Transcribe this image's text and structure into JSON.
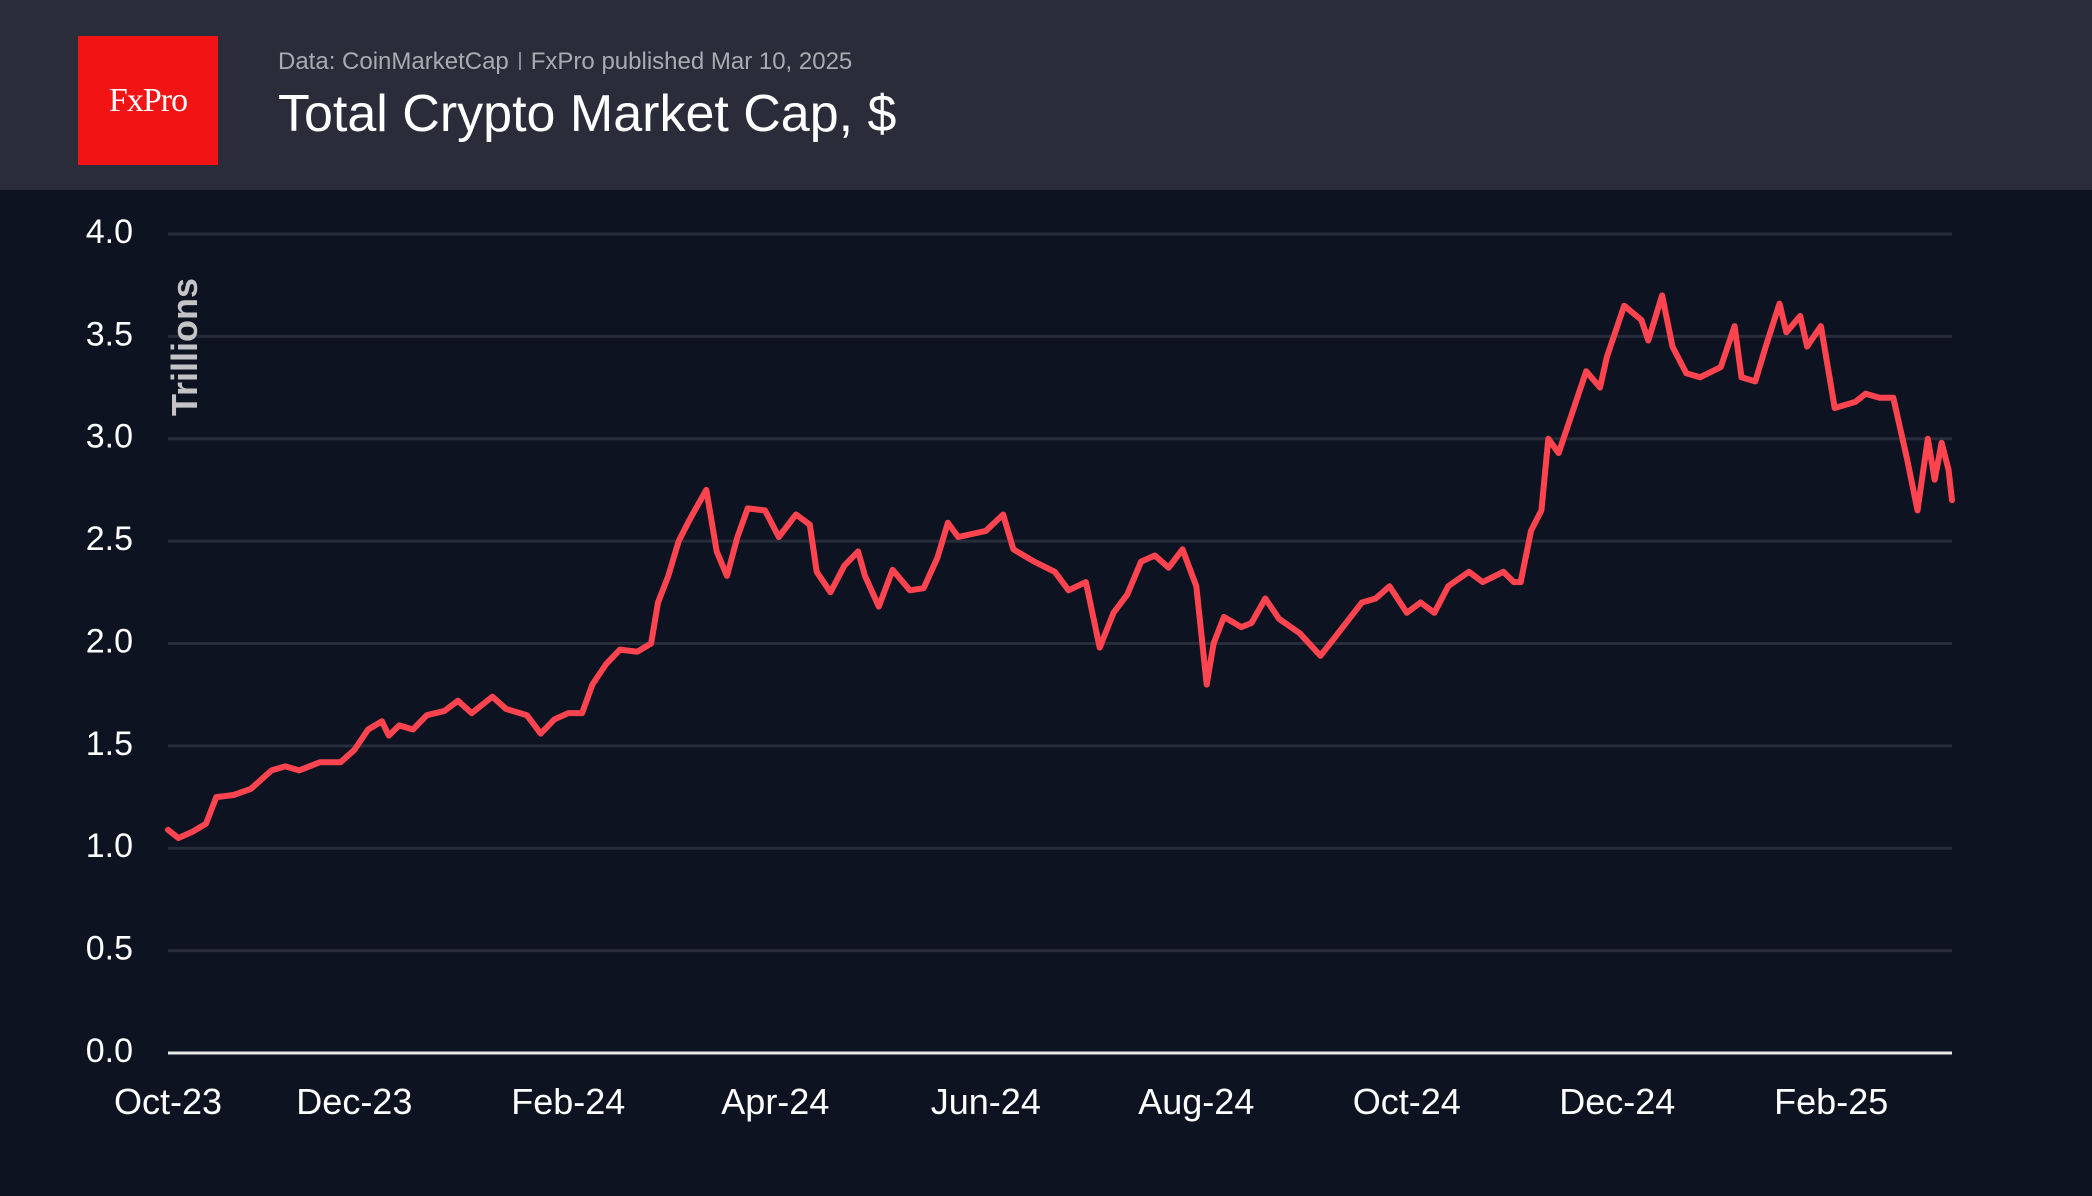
{
  "header": {
    "logo_text": "FxPro",
    "source": "Data: CoinMarketCap",
    "published": "FxPro published Mar 10, 2025",
    "title": "Total Crypto Market Cap, $"
  },
  "colors": {
    "line": "#ff4450",
    "background": "#0d1321",
    "header": "#2a2c39",
    "logo": "#f21414",
    "grid": "#272c3a"
  },
  "chart_data": {
    "type": "line",
    "title": "Total Crypto Market Cap, $",
    "ylabel": "Trillions",
    "xlabel": "",
    "ylim": [
      0,
      4
    ],
    "xlim": [
      "2023-10-08",
      "2025-03-08"
    ],
    "grid": true,
    "yticks": [
      "0.0",
      "0.5",
      "1.0",
      "1.5",
      "2.0",
      "2.5",
      "3.0",
      "3.5",
      "4.0"
    ],
    "xticks": [
      {
        "label": "Oct-23",
        "date": "2023-10-01"
      },
      {
        "label": "Dec-23",
        "date": "2023-12-01"
      },
      {
        "label": "Feb-24",
        "date": "2024-02-01"
      },
      {
        "label": "Apr-24",
        "date": "2024-04-01"
      },
      {
        "label": "Jun-24",
        "date": "2024-06-01"
      },
      {
        "label": "Aug-24",
        "date": "2024-08-01"
      },
      {
        "label": "Oct-24",
        "date": "2024-10-01"
      },
      {
        "label": "Dec-24",
        "date": "2024-12-01"
      },
      {
        "label": "Feb-25",
        "date": "2025-02-01"
      }
    ],
    "series": [
      {
        "x": [
          "2023-10-08",
          "2023-10-11",
          "2023-10-15",
          "2023-10-19",
          "2023-10-22",
          "2023-10-27",
          "2023-11-01",
          "2023-11-07",
          "2023-11-11",
          "2023-11-15",
          "2023-11-21",
          "2023-11-27",
          "2023-12-01",
          "2023-12-05",
          "2023-12-09",
          "2023-12-11",
          "2023-12-14",
          "2023-12-18",
          "2023-12-22",
          "2023-12-27",
          "2023-12-31",
          "2024-01-04",
          "2024-01-10",
          "2024-01-14",
          "2024-01-20",
          "2024-01-24",
          "2024-01-28",
          "2024-02-01",
          "2024-02-05",
          "2024-02-08",
          "2024-02-12",
          "2024-02-16",
          "2024-02-21",
          "2024-02-25",
          "2024-02-27",
          "2024-03-01",
          "2024-03-04",
          "2024-03-07",
          "2024-03-12",
          "2024-03-15",
          "2024-03-18",
          "2024-03-21",
          "2024-03-24",
          "2024-03-29",
          "2024-04-02",
          "2024-04-07",
          "2024-04-11",
          "2024-04-13",
          "2024-04-17",
          "2024-04-21",
          "2024-04-25",
          "2024-04-27",
          "2024-05-01",
          "2024-05-05",
          "2024-05-10",
          "2024-05-14",
          "2024-05-18",
          "2024-05-21",
          "2024-05-24",
          "2024-06-01",
          "2024-06-06",
          "2024-06-09",
          "2024-06-15",
          "2024-06-21",
          "2024-06-25",
          "2024-06-30",
          "2024-07-04",
          "2024-07-08",
          "2024-07-12",
          "2024-07-16",
          "2024-07-20",
          "2024-07-24",
          "2024-07-28",
          "2024-08-01",
          "2024-08-04",
          "2024-08-06",
          "2024-08-09",
          "2024-08-14",
          "2024-08-17",
          "2024-08-21",
          "2024-08-25",
          "2024-08-31",
          "2024-09-06",
          "2024-09-12",
          "2024-09-18",
          "2024-09-22",
          "2024-09-26",
          "2024-10-01",
          "2024-10-05",
          "2024-10-09",
          "2024-10-13",
          "2024-10-19",
          "2024-10-23",
          "2024-10-29",
          "2024-11-01",
          "2024-11-03",
          "2024-11-06",
          "2024-11-09",
          "2024-11-11",
          "2024-11-14",
          "2024-11-17",
          "2024-11-22",
          "2024-11-26",
          "2024-11-28",
          "2024-12-03",
          "2024-12-08",
          "2024-12-10",
          "2024-12-14",
          "2024-12-17",
          "2024-12-21",
          "2024-12-25",
          "2024-12-31",
          "2025-01-04",
          "2025-01-06",
          "2025-01-10",
          "2025-01-13",
          "2025-01-17",
          "2025-01-19",
          "2025-01-23",
          "2025-01-25",
          "2025-01-29",
          "2025-02-02",
          "2025-02-08",
          "2025-02-11",
          "2025-02-15",
          "2025-02-19",
          "2025-02-23",
          "2025-02-26",
          "2025-03-01",
          "2025-03-03",
          "2025-03-05",
          "2025-03-07",
          "2025-03-08"
        ],
        "values": [
          1.09,
          1.05,
          1.08,
          1.12,
          1.25,
          1.26,
          1.29,
          1.38,
          1.4,
          1.38,
          1.42,
          1.42,
          1.48,
          1.58,
          1.62,
          1.55,
          1.6,
          1.58,
          1.65,
          1.67,
          1.72,
          1.66,
          1.74,
          1.68,
          1.65,
          1.56,
          1.63,
          1.66,
          1.66,
          1.8,
          1.9,
          1.97,
          1.96,
          2.0,
          2.2,
          2.33,
          2.5,
          2.6,
          2.75,
          2.45,
          2.33,
          2.52,
          2.66,
          2.65,
          2.52,
          2.63,
          2.58,
          2.35,
          2.25,
          2.38,
          2.45,
          2.33,
          2.18,
          2.36,
          2.26,
          2.27,
          2.42,
          2.59,
          2.52,
          2.55,
          2.63,
          2.46,
          2.4,
          2.35,
          2.26,
          2.3,
          1.98,
          2.15,
          2.24,
          2.4,
          2.43,
          2.37,
          2.46,
          2.28,
          1.8,
          2.0,
          2.13,
          2.08,
          2.1,
          2.22,
          2.12,
          2.05,
          1.94,
          2.07,
          2.2,
          2.22,
          2.28,
          2.15,
          2.2,
          2.15,
          2.28,
          2.35,
          2.3,
          2.35,
          2.3,
          2.3,
          2.55,
          2.65,
          3.0,
          2.93,
          3.08,
          3.33,
          3.25,
          3.4,
          3.65,
          3.58,
          3.48,
          3.7,
          3.45,
          3.32,
          3.3,
          3.35,
          3.55,
          3.3,
          3.28,
          3.45,
          3.66,
          3.52,
          3.6,
          3.45,
          3.55,
          3.15,
          3.18,
          3.22,
          3.2,
          3.2,
          2.9,
          2.65,
          3.0,
          2.8,
          2.98,
          2.85,
          2.7
        ]
      }
    ]
  }
}
